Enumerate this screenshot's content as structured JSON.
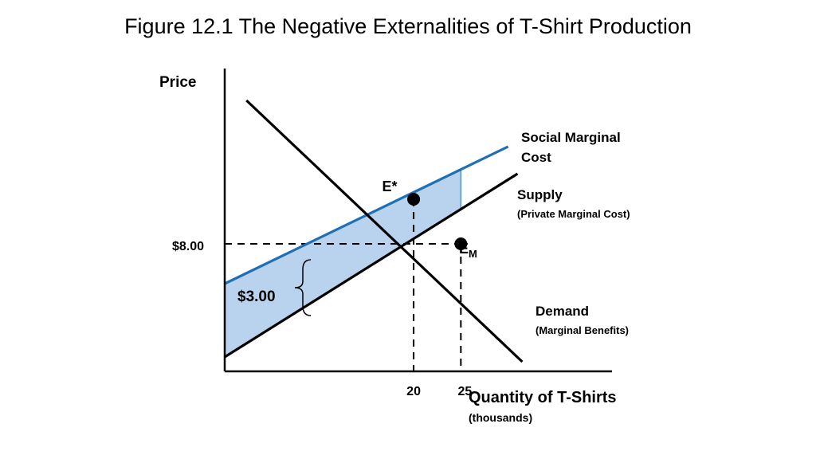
{
  "title": "Figure 12.1 The Negative Externalities of T-Shirt Production",
  "chart_data": {
    "type": "line",
    "ylabel": "Price",
    "xlabel": "Quantity of T-Shirts",
    "xlabel_sub": "(thousands)",
    "x_ticks": [
      {
        "value": 20,
        "label": "20"
      },
      {
        "value": 25,
        "label": "25"
      }
    ],
    "y_ticks": [
      {
        "value": 8,
        "label": "$8.00"
      }
    ],
    "series": [
      {
        "name": "Social Marginal Cost",
        "color": "#1f6fb5",
        "points": [
          [
            0,
            5.5
          ],
          [
            30,
            14.1
          ]
        ]
      },
      {
        "name": "Supply",
        "subname": "(Private Marginal Cost)",
        "color": "#000000",
        "points": [
          [
            0,
            0.9
          ],
          [
            31,
            12.4
          ]
        ]
      },
      {
        "name": "Demand",
        "subname": "(Marginal Benefits)",
        "color": "#000000",
        "points": [
          [
            2.3,
            17.0
          ],
          [
            31.5,
            0.6
          ]
        ]
      }
    ],
    "points": [
      {
        "label": "E*",
        "x": 20,
        "y": 10.8
      },
      {
        "label": "E",
        "sub": "M",
        "x": 25,
        "y": 8
      }
    ],
    "annotations": {
      "gap": "$3.00"
    },
    "xlim": [
      0,
      41
    ],
    "ylim": [
      0,
      19
    ]
  }
}
